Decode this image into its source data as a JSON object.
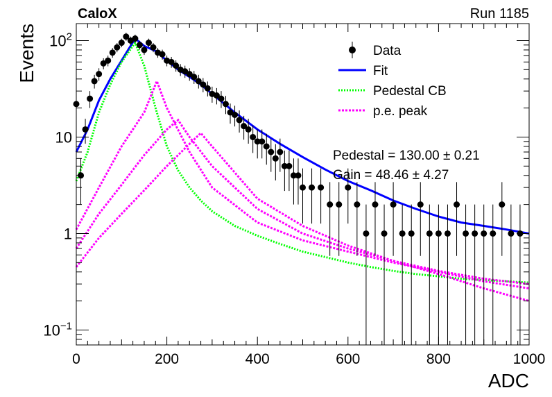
{
  "header": {
    "experiment": "CaloX",
    "run_label": "Run 1185"
  },
  "fit_results": {
    "pedestal": "Pedestal = 130.00 ± 0.21",
    "gain": "Gain = 48.46 ± 4.27"
  },
  "colors": {
    "data": "#000000",
    "fit": "#0000ff",
    "pedestal_cb": "#00ff00",
    "pe_peak": "#ff00ff"
  },
  "chart_data": {
    "type": "scatter",
    "title": "",
    "xlabel": "ADC",
    "ylabel": "Events",
    "xlim": [
      0,
      1000
    ],
    "ylim": [
      0.07,
      150
    ],
    "yscale": "log",
    "grid": false,
    "legend_position": "top-right",
    "x_ticks": [
      0,
      200,
      400,
      600,
      800,
      1000
    ],
    "x_tick_labels": [
      "0",
      "200",
      "400",
      "600",
      "800",
      "1000"
    ],
    "y_ticks": [
      0.1,
      1,
      10,
      100
    ],
    "y_tick_labels": [
      {
        "base": "10",
        "exp": "−1"
      },
      {
        "base": "1",
        "exp": ""
      },
      {
        "base": "10",
        "exp": ""
      },
      {
        "base": "10",
        "exp": "2"
      }
    ],
    "legend": [
      {
        "label": "Data",
        "style": "marker",
        "color": "#000000"
      },
      {
        "label": "Fit",
        "style": "solid",
        "color": "#0000ff"
      },
      {
        "label": "Pedestal CB",
        "style": "dotted",
        "color": "#00ff00"
      },
      {
        "label": "p.e. peak",
        "style": "dashed",
        "color": "#ff00ff"
      }
    ],
    "data_points": {
      "x": [
        0,
        10,
        20,
        30,
        40,
        50,
        60,
        70,
        80,
        90,
        100,
        110,
        120,
        130,
        140,
        150,
        160,
        170,
        180,
        190,
        200,
        210,
        220,
        230,
        240,
        250,
        260,
        270,
        280,
        290,
        300,
        310,
        320,
        330,
        340,
        350,
        360,
        370,
        380,
        390,
        400,
        410,
        420,
        430,
        440,
        450,
        460,
        470,
        480,
        490,
        500,
        520,
        540,
        560,
        580,
        600,
        620,
        640,
        660,
        680,
        700,
        720,
        740,
        760,
        780,
        800,
        820,
        840,
        860,
        880,
        900,
        920,
        940,
        960,
        980
      ],
      "y": [
        22,
        4,
        12,
        25,
        38,
        45,
        58,
        62,
        75,
        85,
        95,
        110,
        100,
        105,
        90,
        80,
        95,
        85,
        75,
        72,
        62,
        60,
        55,
        50,
        48,
        45,
        42,
        38,
        35,
        32,
        28,
        27,
        25,
        22,
        18,
        17,
        15,
        13,
        12,
        10,
        9,
        9,
        8,
        7,
        6,
        7,
        5,
        5,
        4,
        4,
        3,
        3,
        3,
        2,
        2,
        3,
        2,
        1,
        2,
        1,
        2,
        1,
        1,
        2,
        1,
        1,
        1,
        2,
        1,
        1,
        1,
        1,
        2,
        1,
        1
      ]
    },
    "series": [
      {
        "name": "Fit",
        "x": [
          0,
          25,
          50,
          75,
          100,
          130,
          150,
          175,
          200,
          225,
          250,
          275,
          300,
          350,
          400,
          450,
          500,
          550,
          600,
          650,
          700,
          750,
          800,
          850,
          900,
          950,
          1000
        ],
        "y": [
          7,
          12,
          24,
          40,
          62,
          105,
          88,
          78,
          62,
          50,
          42,
          35,
          28,
          18,
          12,
          8.5,
          6.2,
          4.6,
          3.5,
          2.8,
          2.2,
          1.8,
          1.5,
          1.3,
          1.2,
          1.1,
          1.0
        ]
      },
      {
        "name": "Pedestal CB",
        "x": [
          0,
          25,
          50,
          75,
          100,
          130,
          150,
          175,
          200,
          225,
          250,
          275,
          300,
          350,
          400,
          450,
          500,
          550,
          600,
          650,
          700,
          750,
          800,
          850,
          900,
          950,
          1000
        ],
        "y": [
          3.5,
          7,
          18,
          35,
          60,
          95,
          55,
          20,
          8,
          4.5,
          3,
          2.2,
          1.7,
          1.2,
          0.95,
          0.78,
          0.65,
          0.57,
          0.5,
          0.45,
          0.41,
          0.38,
          0.36,
          0.34,
          0.33,
          0.32,
          0.31
        ]
      },
      {
        "name": "p.e. peak 1",
        "x": [
          0,
          50,
          100,
          150,
          178,
          200,
          250,
          300,
          400,
          500,
          600,
          700,
          800,
          900,
          1000
        ],
        "y": [
          1.1,
          3,
          8,
          18,
          38,
          20,
          7,
          3,
          1.3,
          0.85,
          0.65,
          0.5,
          0.4,
          0.32,
          0.27
        ]
      },
      {
        "name": "p.e. peak 2",
        "x": [
          0,
          50,
          100,
          150,
          200,
          225,
          250,
          300,
          400,
          500,
          600,
          700,
          800,
          900,
          1000
        ],
        "y": [
          0.7,
          1.6,
          3.2,
          6.5,
          12,
          15,
          10,
          5,
          1.8,
          1,
          0.7,
          0.52,
          0.41,
          0.34,
          0.3
        ]
      },
      {
        "name": "p.e. peak 3",
        "x": [
          0,
          50,
          100,
          150,
          200,
          250,
          275,
          300,
          400,
          500,
          600,
          700,
          800,
          900,
          1000
        ],
        "y": [
          0.45,
          0.9,
          1.6,
          2.8,
          5,
          8.5,
          11,
          8,
          2.3,
          1.2,
          0.75,
          0.52,
          0.38,
          0.27,
          0.2
        ]
      }
    ]
  }
}
